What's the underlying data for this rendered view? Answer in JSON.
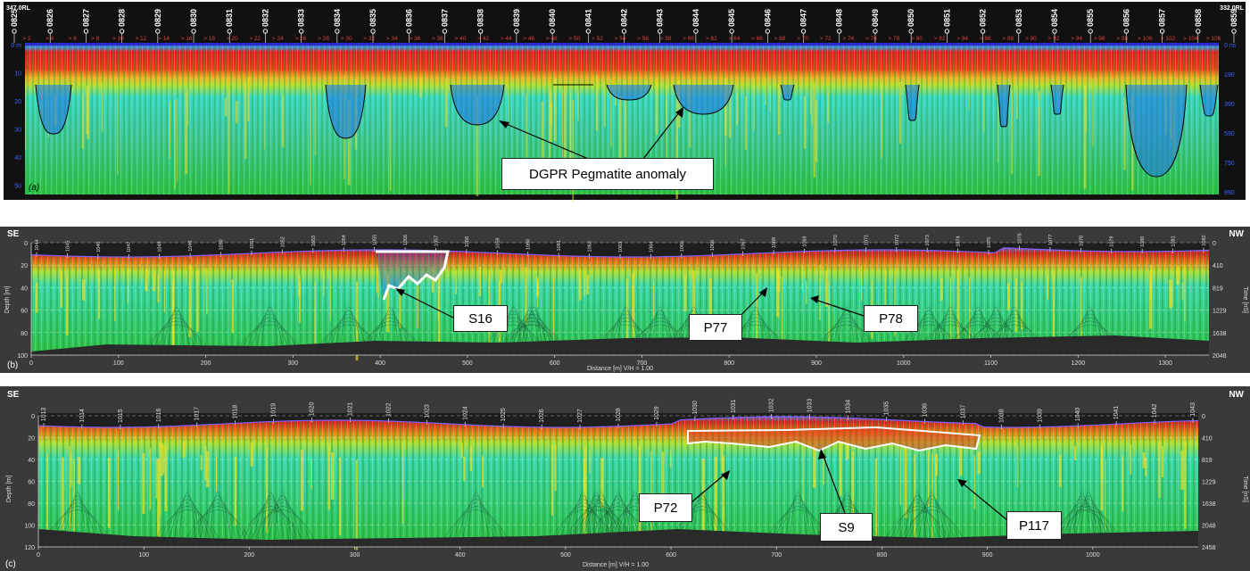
{
  "panel_a": {
    "label": "(a)",
    "rl_left": "347.0RL",
    "rl_right": "332.0RL",
    "depth_ticks": [
      "0 m",
      "10",
      "20",
      "30",
      "40",
      "50"
    ],
    "time_ticks": [
      "0 ns",
      "190",
      "390",
      "590",
      "790",
      "990"
    ],
    "stations": [
      "0825",
      "0826",
      "0827",
      "0828",
      "0829",
      "0830",
      "0831",
      "0832",
      "0833",
      "0834",
      "0835",
      "0836",
      "0837",
      "0838",
      "0839",
      "0840",
      "0841",
      "0842",
      "0843",
      "0844",
      "0845",
      "0846",
      "0847",
      "0848",
      "0849",
      "0850",
      "0851",
      "0852",
      "0853",
      "0854",
      "0855",
      "0856",
      "0857",
      "0858",
      "0859"
    ],
    "distances": [
      "2",
      "4",
      "6",
      "8",
      "10",
      "12",
      "14",
      "16",
      "18",
      "20",
      "22",
      "24",
      "26",
      "28",
      "30",
      "32",
      "34",
      "36",
      "38",
      "40",
      "42",
      "44",
      "46",
      "48",
      "50",
      "52",
      "54",
      "56",
      "58",
      "60",
      "62",
      "64",
      "66",
      "68",
      "70",
      "72",
      "74",
      "76",
      "78",
      "80",
      "82",
      "84",
      "86",
      "88",
      "90",
      "92",
      "94",
      "96",
      "98",
      "100",
      "102",
      "104",
      "106"
    ],
    "callout": "DGPR Pegmatite anomaly"
  },
  "panel_b": {
    "label": "(b)",
    "dir_left": "SE",
    "dir_right": "NW",
    "ylabel": "Depth [m]",
    "y2label": "Time [nS]",
    "xlabel": "Distance [m]  V/H = 1.00",
    "depth_ticks": [
      "0",
      "20",
      "40",
      "60",
      "80",
      "100"
    ],
    "time_ticks": [
      "0",
      "410",
      "819",
      "1229",
      "1638",
      "2048"
    ],
    "x_ticks": [
      "0",
      "100",
      "200",
      "300",
      "400",
      "500",
      "600",
      "700",
      "800",
      "900",
      "1000",
      "1100",
      "1200",
      "1300"
    ],
    "stations": [
      "1044",
      "1045",
      "1046",
      "1047",
      "1048",
      "1049",
      "1050",
      "1051",
      "1052",
      "1053",
      "1054",
      "1055",
      "1056",
      "1057",
      "1058",
      "1059",
      "1060",
      "1061",
      "1062",
      "1063",
      "1064",
      "1065",
      "1066",
      "1067",
      "1068",
      "1069",
      "1070",
      "1071",
      "1072",
      "1073",
      "1074",
      "1075",
      "1076",
      "1077",
      "1078",
      "1079",
      "1080",
      "1081",
      "1082"
    ],
    "callouts": [
      "S16",
      "P77",
      "P78"
    ]
  },
  "panel_c": {
    "label": "(c)",
    "dir_left": "SE",
    "dir_right": "NW",
    "ylabel": "Depth [m]",
    "y2label": "Time [nS]",
    "xlabel": "Distance [m]  V/H = 1.00",
    "depth_ticks": [
      "0",
      "20",
      "40",
      "60",
      "80",
      "100",
      "120"
    ],
    "time_ticks": [
      "0",
      "410",
      "819",
      "1229",
      "1638",
      "2048",
      "2458"
    ],
    "x_ticks": [
      "0",
      "100",
      "200",
      "300",
      "400",
      "500",
      "600",
      "700",
      "800",
      "900",
      "1000"
    ],
    "stations": [
      "1013",
      "1014",
      "1015",
      "1016",
      "1017",
      "1018",
      "1019",
      "1020",
      "1021",
      "1022",
      "1023",
      "1024",
      "1025",
      "1026",
      "1027",
      "1028",
      "1029",
      "1030",
      "1031",
      "1032",
      "1033",
      "1034",
      "1035",
      "1036",
      "1037",
      "1038",
      "1039",
      "1040",
      "1041",
      "1042",
      "1043"
    ],
    "callouts": [
      "P72",
      "S9",
      "P117"
    ]
  }
}
